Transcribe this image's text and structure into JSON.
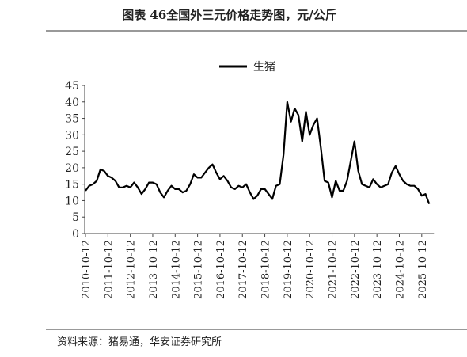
{
  "header": {
    "title": "图表 46全国外三元价格走势图，元/公斤"
  },
  "source": "资料来源：猪易通，华安证券研究所",
  "chart_data": {
    "type": "line",
    "categories": [
      "2010-10-12",
      null,
      null,
      null,
      null,
      null,
      "2011-10-12",
      null,
      null,
      null,
      null,
      null,
      "2012-10-12",
      null,
      null,
      null,
      null,
      null,
      "2013-10-12",
      null,
      null,
      null,
      null,
      null,
      "2014-10-12",
      null,
      null,
      null,
      null,
      null,
      "2015-10-12",
      null,
      null,
      null,
      null,
      null,
      "2016-10-12",
      null,
      null,
      null,
      null,
      null,
      "2017-10-12",
      null,
      null,
      null,
      null,
      null,
      "2018-10-12",
      null,
      null,
      null,
      null,
      null,
      "2019-10-12",
      null,
      null,
      null,
      null,
      null,
      "2020-10-12",
      null,
      null,
      null,
      null,
      null,
      "2021-10-12",
      null,
      null,
      null,
      null,
      null,
      "2022-10-12",
      null,
      null,
      null,
      null,
      null,
      "2023-10-12",
      null,
      null,
      null,
      null,
      null,
      "2024-10-12",
      null,
      null,
      null,
      null,
      null,
      "2025-10-12",
      null,
      null
    ],
    "series": [
      {
        "name": "生猪",
        "color": "#000000",
        "values": [
          13,
          14.5,
          15,
          16,
          19.5,
          19,
          17.5,
          17,
          16,
          14,
          14,
          14.5,
          14,
          15.5,
          14,
          12,
          13.5,
          15.5,
          15.5,
          15,
          12.5,
          11,
          13,
          14.5,
          13.5,
          13.5,
          12.5,
          13,
          15,
          18,
          17,
          17,
          18.5,
          20,
          21,
          18.5,
          16.5,
          17.5,
          16,
          14,
          13.5,
          14.5,
          14,
          15,
          12.5,
          10.5,
          11.5,
          13.5,
          13.5,
          12,
          10.5,
          14.5,
          15,
          24,
          40,
          34,
          38,
          36,
          28,
          37,
          30,
          33,
          35,
          26,
          16,
          15.5,
          11,
          16,
          13,
          13,
          16,
          22,
          28,
          19,
          15,
          14.5,
          14,
          16.5,
          15,
          14,
          14.5,
          15,
          18.5,
          20.5,
          18,
          16,
          15,
          14.5,
          14.5,
          13.5,
          11.5,
          12,
          9
        ]
      }
    ],
    "ylim": [
      0,
      45
    ],
    "yticks": [
      0,
      5,
      10,
      15,
      20,
      25,
      30,
      35,
      40,
      45
    ],
    "legend": "top"
  }
}
